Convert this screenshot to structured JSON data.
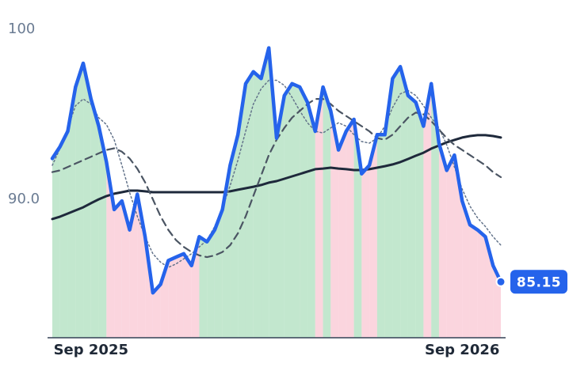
{
  "chart_data": {
    "type": "line",
    "categories": [
      null,
      null,
      null,
      null,
      null,
      "Sep 2025",
      null,
      null,
      null,
      null,
      null,
      null,
      null,
      null,
      null,
      null,
      null,
      null,
      null,
      null,
      null,
      null,
      null,
      null,
      null,
      null,
      null,
      null,
      null,
      null,
      null,
      null,
      null,
      null,
      null,
      null,
      null,
      null,
      null,
      null,
      null,
      null,
      null,
      null,
      null,
      null,
      null,
      null,
      null,
      null,
      null,
      null,
      null,
      "Sep 2026",
      null,
      null,
      null,
      null,
      null
    ],
    "series": [
      {
        "color": "#2563eb",
        "values": [
          92.4,
          93.1,
          94.0,
          96.6,
          98.0,
          95.9,
          94.3,
          92.2,
          89.4,
          89.9,
          88.2,
          90.3,
          87.8,
          84.5,
          85.0,
          86.4,
          86.6,
          86.8,
          86.1,
          87.8,
          87.5,
          88.2,
          89.4,
          92.0,
          93.8,
          96.8,
          97.5,
          97.1,
          98.9,
          93.6,
          96.1,
          96.8,
          96.6,
          95.7,
          94.0,
          96.6,
          95.2,
          92.9,
          94.0,
          94.7,
          91.5,
          92.0,
          93.8,
          93.8,
          97.1,
          97.8,
          96.1,
          95.7,
          94.3,
          96.8,
          93.3,
          91.7,
          92.6,
          89.9,
          88.5,
          88.2,
          87.8,
          86.1,
          85.15
        ]
      },
      {
        "color": "#64748b",
        "values": [
          92.0,
          93.0,
          94.2,
          95.5,
          95.9,
          95.6,
          94.8,
          94.4,
          93.5,
          92.0,
          90.4,
          89.0,
          87.8,
          86.8,
          86.3,
          86.0,
          86.2,
          86.5,
          86.8,
          87.2,
          87.6,
          88.4,
          89.5,
          90.8,
          92.3,
          94.0,
          95.6,
          96.5,
          97.0,
          97.0,
          96.7,
          96.0,
          95.2,
          94.5,
          94.0,
          93.9,
          94.2,
          94.5,
          94.3,
          93.8,
          93.4,
          93.3,
          93.6,
          94.3,
          95.4,
          96.2,
          96.4,
          96.1,
          95.5,
          94.8,
          94.2,
          93.2,
          91.9,
          90.6,
          89.6,
          88.9,
          88.4,
          87.8,
          87.3
        ]
      },
      {
        "color": "#4b5563",
        "values": [
          91.6,
          91.7,
          91.9,
          92.1,
          92.3,
          92.5,
          92.7,
          92.9,
          93.0,
          92.8,
          92.4,
          91.8,
          91.0,
          90.0,
          89.0,
          88.2,
          87.6,
          87.2,
          86.9,
          86.7,
          86.6,
          86.7,
          86.9,
          87.3,
          88.0,
          89.0,
          90.2,
          91.4,
          92.6,
          93.5,
          94.2,
          94.8,
          95.2,
          95.6,
          95.9,
          95.9,
          95.6,
          95.2,
          94.9,
          94.6,
          94.3,
          94.0,
          93.6,
          93.5,
          93.8,
          94.3,
          94.8,
          95.1,
          95.0,
          94.6,
          94.1,
          93.6,
          93.2,
          92.9,
          92.6,
          92.3,
          92.0,
          91.6,
          91.3
        ]
      },
      {
        "color": "#1e293b",
        "values": [
          88.84,
          88.98,
          89.16,
          89.35,
          89.53,
          89.77,
          90.0,
          90.19,
          90.33,
          90.42,
          90.51,
          90.51,
          90.47,
          90.42,
          90.42,
          90.42,
          90.42,
          90.42,
          90.42,
          90.42,
          90.42,
          90.42,
          90.42,
          90.47,
          90.56,
          90.65,
          90.74,
          90.84,
          90.98,
          91.07,
          91.21,
          91.35,
          91.49,
          91.63,
          91.77,
          91.81,
          91.86,
          91.81,
          91.77,
          91.72,
          91.72,
          91.77,
          91.86,
          91.95,
          92.05,
          92.19,
          92.37,
          92.56,
          92.74,
          92.98,
          93.16,
          93.35,
          93.49,
          93.63,
          93.72,
          93.77,
          93.77,
          93.72,
          93.63
        ]
      }
    ],
    "up_color": "#8fd3a6",
    "down_color": "#f7b3c2",
    "ylim": [
      81.86,
      101.72
    ],
    "yticks": [
      {
        "value": 90,
        "label": "90.0"
      },
      100
    ]
  }
}
